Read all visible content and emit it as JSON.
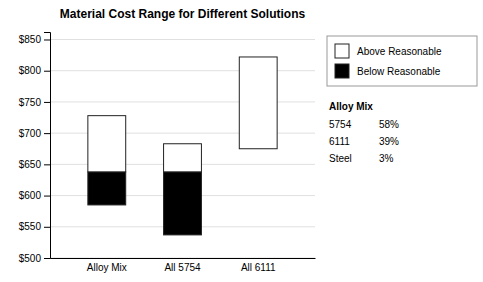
{
  "chart_data": {
    "type": "bar",
    "title": "Material Cost Range for Different Solutions",
    "categories": [
      "Alloy Mix",
      "All 5754",
      "All 6111"
    ],
    "series": [
      {
        "name": "Below Reasonable",
        "color": "#000000",
        "bottoms": [
          585,
          537,
          675
        ],
        "values": [
          638,
          638,
          675
        ]
      },
      {
        "name": "Above Reasonable",
        "color": "#ffffff",
        "bottoms": [
          638,
          638,
          675
        ],
        "values": [
          728,
          683,
          822
        ]
      }
    ],
    "ylim": [
      500,
      862
    ],
    "yticks": [
      {
        "value": 500,
        "label": "$500"
      },
      {
        "value": 550,
        "label": "$550"
      },
      {
        "value": 600,
        "label": "$600"
      },
      {
        "value": 650,
        "label": "$650"
      },
      {
        "value": 700,
        "label": "$700"
      },
      {
        "value": 750,
        "label": "$750"
      },
      {
        "value": 800,
        "label": "$800"
      },
      {
        "value": 850,
        "label": "$850"
      }
    ],
    "grid": true,
    "legend": "right",
    "mix_title": "Alloy Mix",
    "mix": [
      {
        "name": "5754",
        "share": "58%"
      },
      {
        "name": "6111",
        "share": "39%"
      },
      {
        "name": "Steel",
        "share": "3%"
      }
    ]
  }
}
